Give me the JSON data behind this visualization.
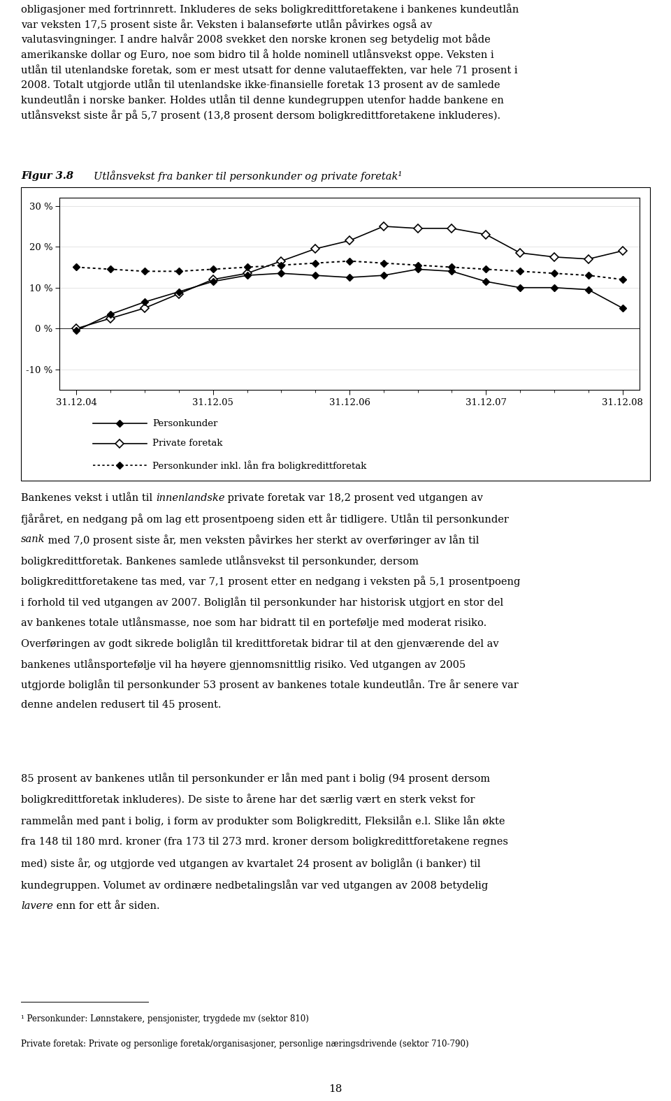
{
  "title": "Figur 3.8",
  "subtitle": "Utlånsvekst fra banker til personkunder og private foretak¹",
  "x_labels": [
    "31.12.04",
    "31.12.05",
    "31.12.06",
    "31.12.07",
    "31.12.08"
  ],
  "x_tick_positions": [
    0,
    4,
    8,
    12,
    16
  ],
  "num_points": 17,
  "personkunder": [
    -0.5,
    3.5,
    6.5,
    9.0,
    11.5,
    13.0,
    13.5,
    13.0,
    12.5,
    13.0,
    14.5,
    14.0,
    11.5,
    10.0,
    10.0,
    9.5,
    5.0
  ],
  "private_foretak": [
    0.0,
    2.5,
    5.0,
    8.5,
    12.0,
    13.5,
    16.5,
    19.5,
    21.5,
    25.0,
    24.5,
    24.5,
    23.0,
    18.5,
    17.5,
    17.0,
    19.0
  ],
  "personkunder_inkl": [
    15.0,
    14.5,
    14.0,
    14.0,
    14.5,
    15.0,
    15.5,
    16.0,
    16.5,
    16.0,
    15.5,
    15.0,
    14.5,
    14.0,
    13.5,
    13.0,
    12.0
  ],
  "ylim": [
    -15,
    32
  ],
  "yticks": [
    -10,
    0,
    10,
    20,
    30
  ],
  "ytick_labels": [
    "-10 %",
    "0 %",
    "10 %",
    "20 %",
    "30 %"
  ],
  "legend": [
    "Personkunder",
    "Private foretak",
    "Personkunder inkl. lån fra boligkredittforetak"
  ],
  "background_color": "#ffffff",
  "fig_width": 9.6,
  "fig_height": 15.76,
  "top_text": "obligasjoner med fortrinnrett. Inkluderes de seks boligkredittforetakene i bankenes kundeutlån\nvar veksten 17,5 prosent siste år. Veksten i balanseførte utlån påvirkes også av\nvalutasvingninger. I andre halvår 2008 svekket den norske kronen seg betydelig mot både\namerikanske dollar og Euro, noe som bidro til å holde nominell utlånsvekst oppe. Veksten i\nutlån til utenlandske foretak, som er mest utsatt for denne valutaeffekten, var hele 71 prosent i\n2008. Totalt utgjorde utlån til utenlandske ikke-finansielle foretak 13 prosent av de samlede\nkundeutlån i norske banker. Holdes utlån til denne kundegruppen utenfor hadde bankene en\nutlånsvekst siste år på 5,7 prosent (13,8 prosent dersom boligkredittforetakene inkluderes).",
  "mid_text_lines": [
    [
      [
        "Bankenes vekst i utlån til ",
        false
      ],
      [
        "innenlandske",
        true
      ],
      [
        " private foretak var 18,2 prosent ved utgangen av",
        false
      ]
    ],
    [
      [
        "fjåråret, en nedgang på om lag ett prosentpoeng siden ett år tidligere. Utlån til personkunder",
        false
      ]
    ],
    [
      [
        "sank",
        true
      ],
      [
        " med 7,0 prosent siste år, men veksten påvirkes her sterkt av overføringer av lån til",
        false
      ]
    ],
    [
      [
        "boligkredittforetak. Bankenes samlede utlånsvekst til personkunder, dersom",
        false
      ]
    ],
    [
      [
        "boligkredittforetakene tas med, var 7,1 prosent etter en nedgang i veksten på 5,1 prosentpoeng",
        false
      ]
    ],
    [
      [
        "i forhold til ved utgangen av 2007. Boliglån til personkunder har historisk utgjort en stor del",
        false
      ]
    ],
    [
      [
        "av bankenes totale utlånsmasse, noe som har bidratt til en portefølje med moderat risiko.",
        false
      ]
    ],
    [
      [
        "Overføringen av godt sikrede boliglån til kredittforetak bidrar til at den gjenværende del av",
        false
      ]
    ],
    [
      [
        "bankenes utlånsportefølje vil ha høyere gjennomsnittlig risiko. Ved utgangen av 2005",
        false
      ]
    ],
    [
      [
        "utgjorde boliglån til personkunder 53 prosent av bankenes totale kundeutlån. Tre år senere var",
        false
      ]
    ],
    [
      [
        "denne andelen redusert til 45 prosent.",
        false
      ]
    ]
  ],
  "bot_text_lines": [
    [
      [
        "85 prosent av bankenes utlån til personkunder er lån med pant i bolig (94 prosent dersom",
        false
      ]
    ],
    [
      [
        "boligkredittforetak inkluderes). De siste to årene har det særlig vært en sterk vekst for",
        false
      ]
    ],
    [
      [
        "rammelån med pant i bolig, i form av produkter som Boligkreditt, Fleksilån e.l. Slike lån økte",
        false
      ]
    ],
    [
      [
        "fra 148 til 180 mrd. kroner (fra 173 til 273 mrd. kroner dersom boligkredittforetakene regnes",
        false
      ]
    ],
    [
      [
        "med) siste år, og utgjorde ved utgangen av kvartalet 24 prosent av boliglån (i banker) til",
        false
      ]
    ],
    [
      [
        "kundegruppen. Volumet av ordinære nedbetalingslån var ved utgangen av 2008 betydelig",
        false
      ]
    ],
    [
      [
        "lavere",
        true
      ],
      [
        " enn for ett år siden.",
        false
      ]
    ]
  ],
  "footnote1": "¹ Personkunder: Lønnstakere, pensjonister, trygdede mv (sektor 810)",
  "footnote2": "Private foretak: Private og personlige foretak/organisasjoner, personlige næringsdrivende (sektor 710-790)",
  "page_number": "18"
}
